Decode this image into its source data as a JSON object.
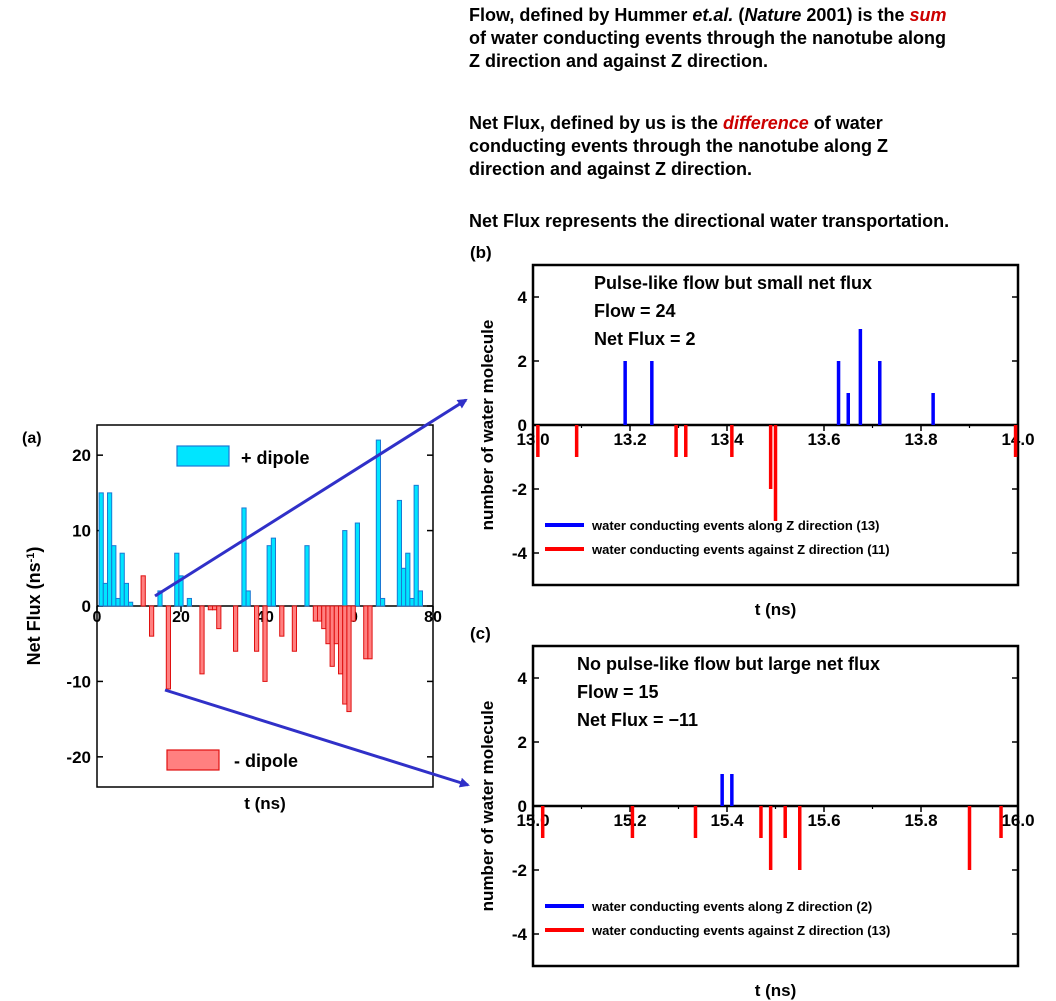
{
  "description": {
    "flow": {
      "pre": "Flow, defined by Hummer ",
      "etal": "et.al.",
      "mid": " (",
      "journal": "Nature",
      "post": " 2001) is the ",
      "em": "sum",
      "line2": "of water conducting events through the nanotube along",
      "line3": "Z direction and against Z direction."
    },
    "netflux": {
      "pre": "Net Flux, defined by us is the ",
      "em": "difference",
      "post": " of water",
      "line2": "conducting events through the nanotube along Z",
      "line3": "direction and against Z direction."
    },
    "summary": "Net Flux represents the directional water transportation."
  },
  "colors": {
    "blue_bar": "#00e5ff",
    "blue_edge": "#1a78d4",
    "red_bar": "#ff8080",
    "red_edge": "#e01010",
    "event_blue": "#0000ff",
    "event_red": "#ff0000",
    "arrow": "#3030c8"
  },
  "chart_data": [
    {
      "id": "a",
      "panel_label": "(a)",
      "type": "bar",
      "xlabel": "t (ns)",
      "ylabel": "Net Flux (ns",
      "ylabel_sup": "-1",
      "ylabel_close": ")",
      "xlim": [
        0,
        80
      ],
      "ylim": [
        -24,
        24
      ],
      "xticks": [
        0,
        20,
        40,
        60,
        80
      ],
      "yticks": [
        -20,
        -10,
        0,
        10,
        20
      ],
      "xtick_labels": [
        "0",
        "20",
        "40",
        "60",
        "80"
      ],
      "ytick_labels": [
        "-20",
        "-10",
        "0",
        "10",
        "20"
      ],
      "legend": [
        {
          "label": "+ dipole",
          "color": "#00e5ff",
          "edge": "#1a78d4"
        },
        {
          "label": "-  dipole",
          "color": "#ff8080",
          "edge": "#e01010"
        }
      ],
      "series": [
        {
          "name": "+ dipole",
          "t": [
            1,
            2,
            3,
            4,
            5,
            6,
            7,
            8,
            15,
            19,
            20,
            22,
            35,
            36,
            41,
            42,
            50,
            59,
            62,
            67,
            68,
            72,
            73,
            74,
            75,
            76,
            77
          ],
          "values": [
            15,
            3,
            15,
            8,
            1,
            7,
            3,
            0.5,
            2,
            7,
            4,
            1,
            13,
            2,
            8,
            9,
            8,
            10,
            11,
            22,
            1,
            14,
            5,
            7,
            1,
            16,
            2
          ]
        },
        {
          "name": "-  dipole",
          "t": [
            11,
            13,
            17,
            25,
            27,
            28,
            29,
            33,
            38,
            40,
            44,
            47,
            52,
            53,
            54,
            55,
            56,
            57,
            58,
            59,
            60,
            61,
            64,
            65
          ],
          "values": [
            4,
            -4,
            -11,
            -9,
            -0.5,
            -0.5,
            -3,
            -6,
            -6,
            -10,
            -4,
            -6,
            -2,
            -2,
            -3,
            -5,
            -8,
            -5,
            -9,
            -13,
            -14,
            -2,
            -7,
            -7
          ]
        }
      ]
    },
    {
      "id": "b",
      "panel_label": "(b)",
      "type": "bar",
      "xlabel": "t (ns)",
      "ylabel": "number of water molecule",
      "xlim": [
        13.0,
        14.0
      ],
      "ylim": [
        -5,
        5
      ],
      "xticks": [
        13.0,
        13.2,
        13.4,
        13.6,
        13.8,
        14.0
      ],
      "yticks": [
        -4,
        -2,
        0,
        2,
        4
      ],
      "xtick_labels": [
        "13.0",
        "13.2",
        "13.4",
        "13.6",
        "13.8",
        "14.0"
      ],
      "ytick_labels": [
        "-4",
        "-2",
        "0",
        "2",
        "4"
      ],
      "annotation": [
        "Pulse-like flow but small net flux",
        "Flow = 24",
        "Net Flux = 2"
      ],
      "legend": [
        {
          "label": "water conducting events along Z direction (13)",
          "color": "#0000ff"
        },
        {
          "label": "water conducting events against Z direction (11)",
          "color": "#ff0000"
        }
      ],
      "series": [
        {
          "name": "water conducting events along Z direction (13)",
          "t": [
            13.19,
            13.245,
            13.63,
            13.65,
            13.675,
            13.715,
            13.825
          ],
          "values": [
            2,
            2,
            2,
            1,
            3,
            2,
            1
          ]
        },
        {
          "name": "water conducting events against Z direction (11)",
          "t": [
            13.01,
            13.09,
            13.295,
            13.315,
            13.41,
            13.49,
            13.5,
            13.995
          ],
          "values": [
            -1,
            -1,
            -1,
            -1,
            -1,
            -2,
            -3,
            -1
          ]
        }
      ]
    },
    {
      "id": "c",
      "panel_label": "(c)",
      "type": "bar",
      "xlabel": "t (ns)",
      "ylabel": "number of water molecule",
      "xlim": [
        15.0,
        16.0
      ],
      "ylim": [
        -5,
        5
      ],
      "xticks": [
        15.0,
        15.2,
        15.4,
        15.6,
        15.8,
        16.0
      ],
      "yticks": [
        -4,
        -2,
        0,
        2,
        4
      ],
      "xtick_labels": [
        "15.0",
        "15.2",
        "15.4",
        "15.6",
        "15.8",
        "16.0"
      ],
      "ytick_labels": [
        "-4",
        "-2",
        "0",
        "2",
        "4"
      ],
      "annotation": [
        "No pulse-like flow but large net flux",
        "Flow = 15",
        "Net Flux =  −11"
      ],
      "legend": [
        {
          "label": "water conducting events along Z direction (2)",
          "color": "#0000ff"
        },
        {
          "label": "water conducting events against Z direction (13)",
          "color": "#ff0000"
        }
      ],
      "series": [
        {
          "name": "water conducting events along Z direction (2)",
          "t": [
            15.39,
            15.41
          ],
          "values": [
            1,
            1
          ]
        },
        {
          "name": "water conducting events against Z direction (13)",
          "t": [
            15.02,
            15.205,
            15.335,
            15.47,
            15.49,
            15.52,
            15.55,
            15.9,
            15.965
          ],
          "values": [
            -1,
            -1,
            -1,
            -1,
            -2,
            -1,
            -2,
            -2,
            -1
          ]
        }
      ]
    }
  ]
}
